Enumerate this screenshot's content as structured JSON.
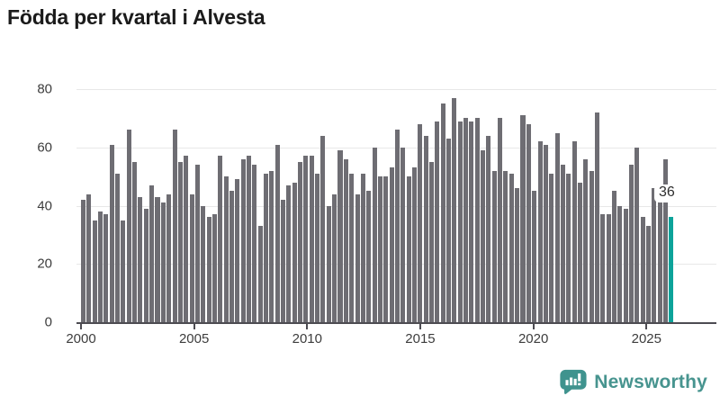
{
  "title": "Födda per kvartal i Alvesta",
  "chart_data": {
    "type": "bar",
    "title": "Födda per kvartal i Alvesta",
    "x_period": {
      "start": "2000-Q1",
      "end": "2025-Q4",
      "freq": "quarterly"
    },
    "x_tick_labels": [
      "2000",
      "2005",
      "2010",
      "2015",
      "2020",
      "2025"
    ],
    "y_ticks": [
      0,
      20,
      40,
      60,
      80
    ],
    "ylim": [
      0,
      85
    ],
    "grid": true,
    "legend": "none",
    "bar_color": "#6e6d73",
    "highlight_color": "#0da39a",
    "highlight_index": 103,
    "values": [
      42,
      44,
      35,
      38,
      37,
      61,
      51,
      35,
      66,
      55,
      43,
      39,
      47,
      43,
      41,
      44,
      66,
      55,
      57,
      44,
      54,
      40,
      36,
      37,
      57,
      50,
      45,
      49,
      56,
      57,
      54,
      33,
      51,
      52,
      61,
      42,
      47,
      48,
      55,
      57,
      57,
      51,
      64,
      40,
      44,
      59,
      56,
      51,
      44,
      51,
      45,
      60,
      50,
      50,
      53,
      66,
      60,
      50,
      53,
      68,
      64,
      55,
      69,
      75,
      63,
      77,
      69,
      70,
      69,
      70,
      59,
      64,
      52,
      70,
      52,
      51,
      46,
      71,
      68,
      45,
      62,
      61,
      51,
      65,
      54,
      51,
      62,
      48,
      56,
      52,
      72,
      37,
      37,
      45,
      40,
      39,
      54,
      60,
      36,
      33,
      46,
      44,
      56,
      36
    ],
    "annotation": {
      "latest_value_label": "36"
    }
  },
  "footer": {
    "brand": "Newsworthy",
    "brand_color": "#47948f"
  }
}
